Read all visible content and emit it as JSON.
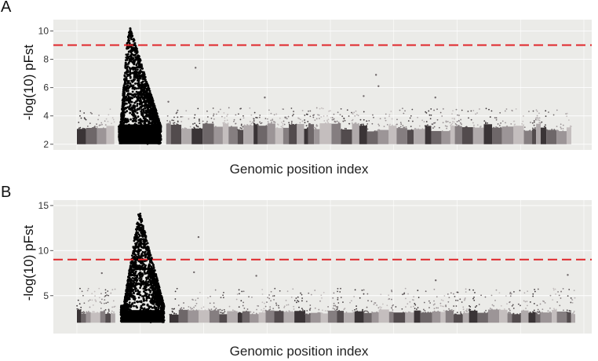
{
  "panels": [
    {
      "letter": "A",
      "ylabel": "-log(10) pFst",
      "xlabel": "Genomic position index"
    },
    {
      "letter": "B",
      "ylabel": "-log(10) pFst",
      "xlabel": "Genomic position index"
    }
  ],
  "colors": {
    "background": "#ebebe8",
    "grid": "#ffffff",
    "threshold": "#e0262a",
    "peak": "#000000",
    "chromosome_palette": [
      "#3a3436",
      "#6e6769",
      "#9c9597",
      "#c4bebe",
      "#857e80",
      "#524b4d",
      "#b0aaab"
    ]
  },
  "chart_data": [
    {
      "type": "scatter",
      "subtype": "manhattan",
      "xlabel": "Genomic position index",
      "ylabel": "-log(10) pFst",
      "ylim": [
        1.6,
        10.8
      ],
      "yticks": [
        2,
        4,
        6,
        8,
        10
      ],
      "threshold": 9,
      "x_range": [
        0,
        100
      ],
      "baseline": 2,
      "background_max": 4.6,
      "grid": true,
      "peak": {
        "x_start": 8.5,
        "x_end": 17.0,
        "x_max": 10.5,
        "max": 10.6
      },
      "outliers": [
        {
          "x": 24.0,
          "y": 7.4
        },
        {
          "x": 60.5,
          "y": 6.9
        },
        {
          "x": 61.0,
          "y": 6.1
        },
        {
          "x": 58.0,
          "y": 5.4
        },
        {
          "x": 72.5,
          "y": 5.3
        },
        {
          "x": 38.0,
          "y": 5.3
        },
        {
          "x": 18.5,
          "y": 5.0
        }
      ]
    },
    {
      "type": "scatter",
      "subtype": "manhattan",
      "xlabel": "Genomic position index",
      "ylabel": "-log(10) pFst",
      "ylim": [
        0.8,
        15.6
      ],
      "yticks": [
        5,
        10,
        15
      ],
      "threshold": 9,
      "x_range": [
        0,
        100
      ],
      "baseline": 2,
      "background_max": 5.8,
      "grid": true,
      "peak": {
        "x_start": 8.8,
        "x_end": 17.5,
        "x_max": 12.5,
        "max": 14.6
      },
      "outliers": [
        {
          "x": 24.4,
          "y": 11.5
        },
        {
          "x": 23.5,
          "y": 7.6
        },
        {
          "x": 98.5,
          "y": 7.3
        },
        {
          "x": 36.0,
          "y": 7.2
        },
        {
          "x": 5.0,
          "y": 7.5
        },
        {
          "x": 72.0,
          "y": 6.7
        }
      ]
    }
  ]
}
